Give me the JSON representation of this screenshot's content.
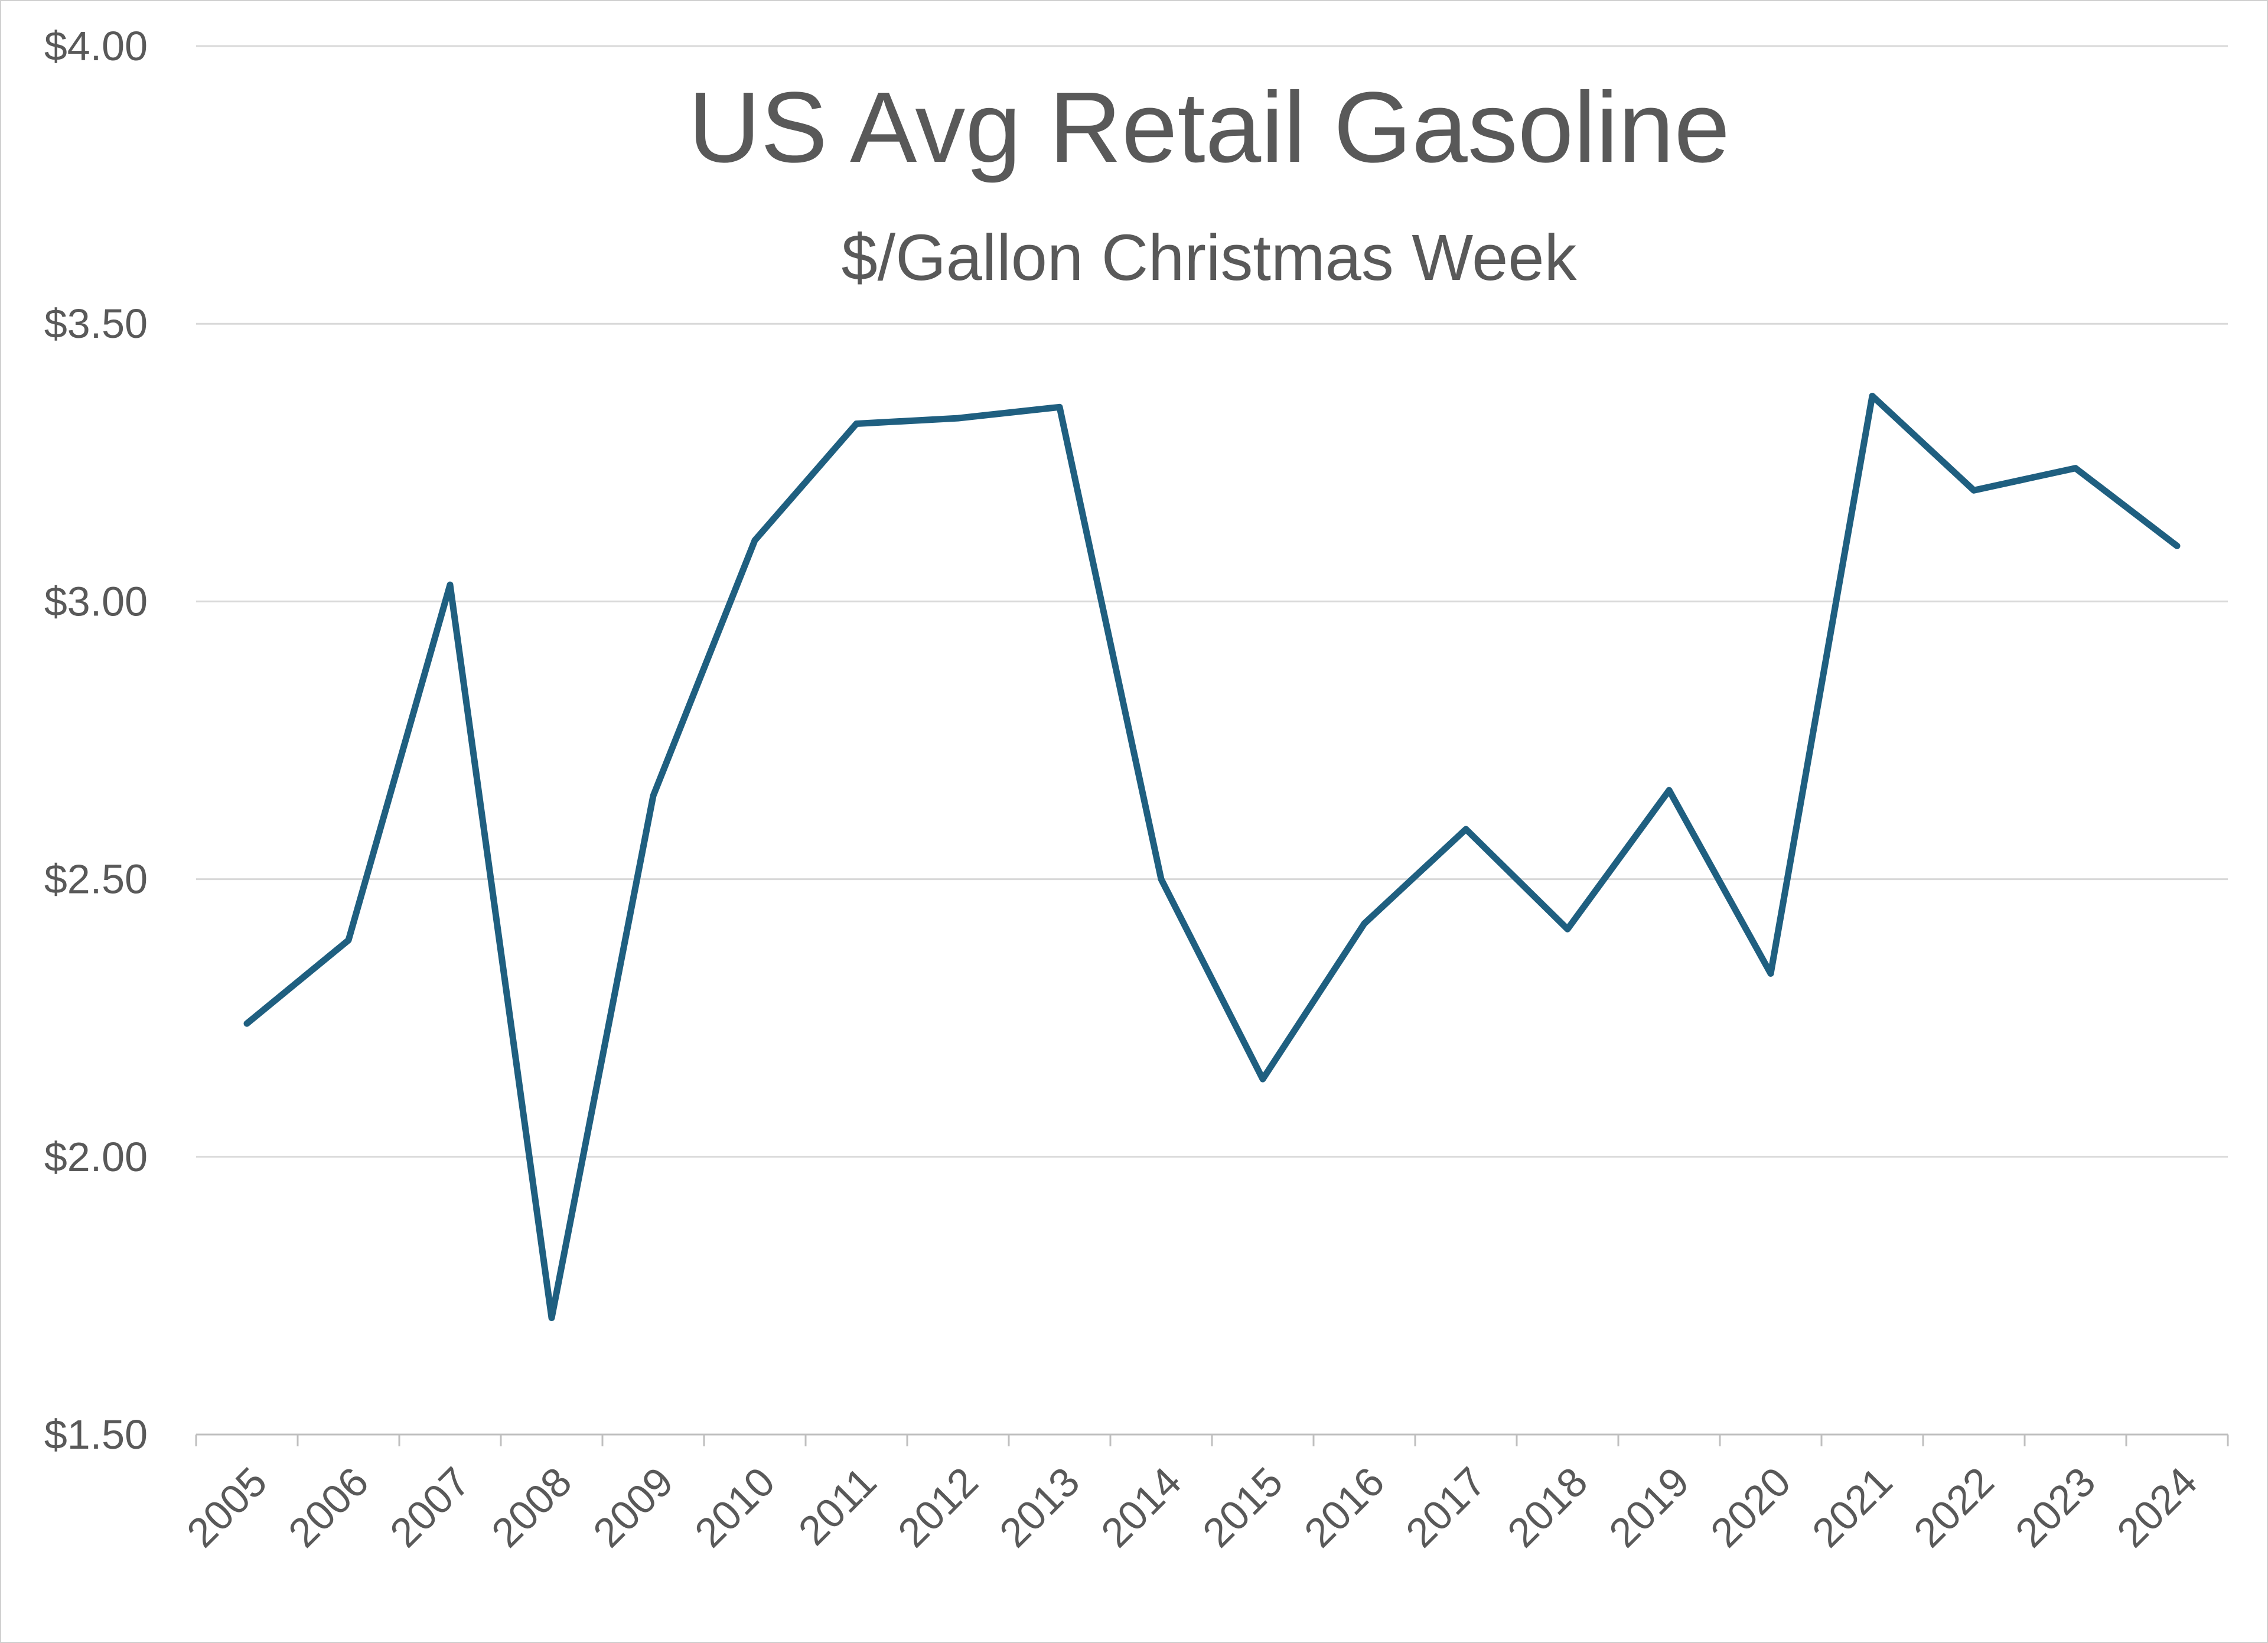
{
  "chart_data": {
    "type": "line",
    "title": "US Avg Retail Gasoline",
    "subtitle": "$/Gallon Christmas Week",
    "xlabel": "",
    "ylabel": "",
    "categories": [
      "2005",
      "2006",
      "2007",
      "2008",
      "2009",
      "2010",
      "2011",
      "2012",
      "2013",
      "2014",
      "2015",
      "2016",
      "2017",
      "2018",
      "2019",
      "2020",
      "2021",
      "2022",
      "2023",
      "2024"
    ],
    "series": [
      {
        "name": "US Avg Retail Gasoline",
        "values": [
          2.24,
          2.39,
          3.03,
          1.71,
          2.65,
          3.11,
          3.32,
          3.33,
          3.35,
          2.5,
          2.14,
          2.42,
          2.59,
          2.41,
          2.66,
          2.33,
          3.37,
          3.2,
          3.24,
          3.1
        ]
      }
    ],
    "ylim": [
      1.5,
      4.0
    ],
    "y_ticks": [
      1.5,
      2.0,
      2.5,
      3.0,
      3.5,
      4.0
    ],
    "y_tick_labels": [
      "$1.50",
      "$2.00",
      "$2.50",
      "$3.00",
      "$3.50",
      "$4.00"
    ],
    "grid": true,
    "legend": "none",
    "colors": {
      "line": "#1F5F80",
      "grid": "#D9D9D9",
      "axis": "#BFBFBF",
      "text": "#595959"
    }
  }
}
